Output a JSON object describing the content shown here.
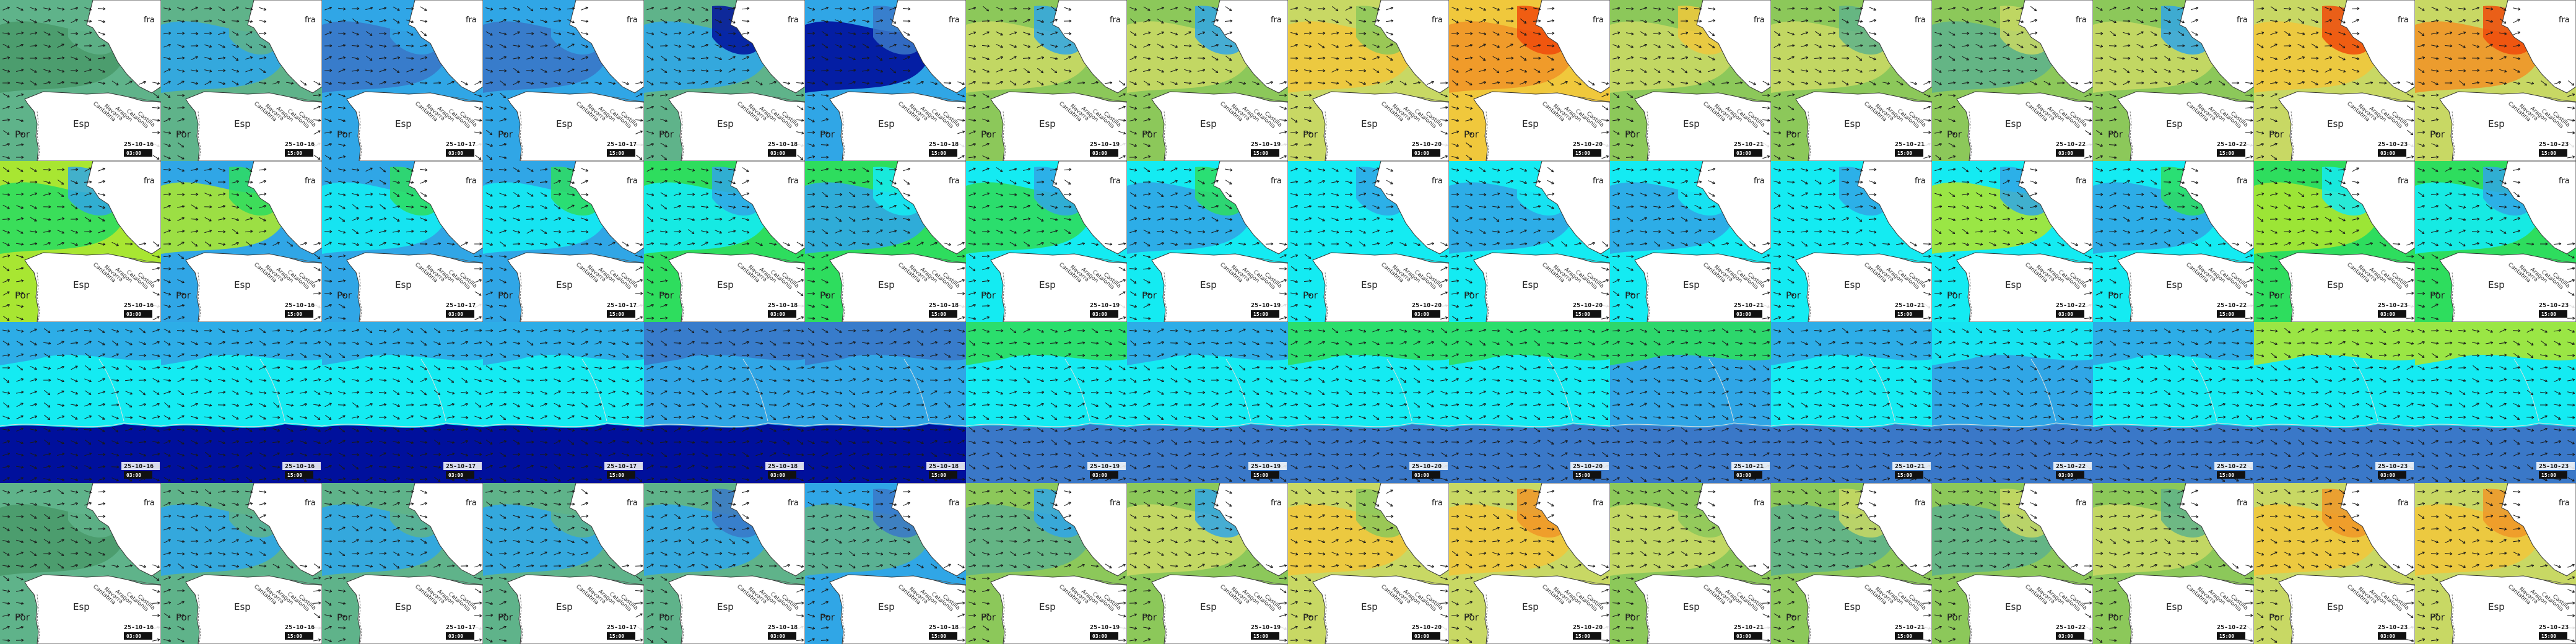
{
  "map_labels": {
    "france": "fra",
    "spain": "Esp",
    "portugal": "Por",
    "regions": [
      "Cantabria",
      "Navarra",
      "Aragon",
      "Catalonia",
      "Castilla"
    ]
  },
  "legend_colors": {
    "sea_green": "#5fb38a",
    "dark_green": "#4a9a6a",
    "light_blue": "#30a6e6",
    "mid_blue": "#3a78c8",
    "navy": "#00109c",
    "cyan": "#14ebf2",
    "green": "#2edd5e",
    "yellow_green": "#a8e632",
    "olive": "#8cc85a",
    "lime": "#c8d864",
    "yellow": "#f0c83c",
    "orange": "#f09628",
    "red": "#f04a0a"
  },
  "frames": [
    {
      "date": "25-10-16",
      "time": "03:00"
    },
    {
      "date": "25-10-16",
      "time": "15:00"
    },
    {
      "date": "25-10-17",
      "time": "03:00"
    },
    {
      "date": "25-10-17",
      "time": "15:00"
    },
    {
      "date": "25-10-18",
      "time": "03:00"
    },
    {
      "date": "25-10-18",
      "time": "15:00"
    },
    {
      "date": "25-10-19",
      "time": "03:00"
    },
    {
      "date": "25-10-19",
      "time": "15:00"
    },
    {
      "date": "25-10-20",
      "time": "03:00"
    },
    {
      "date": "25-10-20",
      "time": "15:00"
    },
    {
      "date": "25-10-21",
      "time": "03:00"
    },
    {
      "date": "25-10-21",
      "time": "15:00"
    },
    {
      "date": "25-10-22",
      "time": "03:00"
    },
    {
      "date": "25-10-22",
      "time": "15:00"
    },
    {
      "date": "25-10-23",
      "time": "03:00"
    },
    {
      "date": "25-10-23",
      "time": "15:00"
    }
  ],
  "rows": [
    {
      "name": "row-wind",
      "style": "map",
      "tiles": [
        {
          "base": "#5fb38a",
          "a": "#4a9a6a",
          "b": "#5fb38a"
        },
        {
          "base": "#5fb38a",
          "a": "#30a6e6",
          "b": "#5fb38a"
        },
        {
          "base": "#30a6e6",
          "a": "#3a78c8",
          "b": "#30a6e6"
        },
        {
          "base": "#30a6e6",
          "a": "#3a78c8",
          "b": "#30a6e6"
        },
        {
          "base": "#5fb38a",
          "a": "#30a6e6",
          "b": "#00109c"
        },
        {
          "base": "#30a6e6",
          "a": "#00109c",
          "b": "#3a78c8"
        },
        {
          "base": "#8cc85a",
          "a": "#c8d864",
          "b": "#30a6e6"
        },
        {
          "base": "#8cc85a",
          "a": "#c8d864",
          "b": "#30a6e6"
        },
        {
          "base": "#c8d864",
          "a": "#f0c83c",
          "b": "#8cc85a"
        },
        {
          "base": "#f0c83c",
          "a": "#f09628",
          "b": "#f04a0a"
        },
        {
          "base": "#8cc85a",
          "a": "#c8d864",
          "b": "#f0c83c"
        },
        {
          "base": "#8cc85a",
          "a": "#c8d864",
          "b": "#5fb38a"
        },
        {
          "base": "#8cc85a",
          "a": "#5fb38a",
          "b": "#c8d864"
        },
        {
          "base": "#8cc85a",
          "a": "#c8d864",
          "b": "#30a6e6"
        },
        {
          "base": "#c8d864",
          "a": "#f0c83c",
          "b": "#f04a0a"
        },
        {
          "base": "#c8d864",
          "a": "#f09628",
          "b": "#f04a0a"
        }
      ]
    },
    {
      "name": "row-wave",
      "style": "map",
      "tiles": [
        {
          "base": "#a8e632",
          "a": "#2edd5e",
          "b": "#30a6e6"
        },
        {
          "base": "#30a6e6",
          "a": "#a8e632",
          "b": "#2edd5e"
        },
        {
          "base": "#30a6e6",
          "a": "#14ebf2",
          "b": "#2edd5e"
        },
        {
          "base": "#30a6e6",
          "a": "#14ebf2",
          "b": "#2edd5e"
        },
        {
          "base": "#2edd5e",
          "a": "#14ebf2",
          "b": "#30a6e6"
        },
        {
          "base": "#2edd5e",
          "a": "#30a6e6",
          "b": "#14ebf2"
        },
        {
          "base": "#14ebf2",
          "a": "#2edd5e",
          "b": "#30a6e6"
        },
        {
          "base": "#14ebf2",
          "a": "#30a6e6",
          "b": "#2edd5e"
        },
        {
          "base": "#14ebf2",
          "a": "#14ebf2",
          "b": "#30a6e6"
        },
        {
          "base": "#14ebf2",
          "a": "#30a6e6",
          "b": "#14ebf2"
        },
        {
          "base": "#14ebf2",
          "a": "#30a6e6",
          "b": "#14ebf2"
        },
        {
          "base": "#14ebf2",
          "a": "#14ebf2",
          "b": "#30a6e6"
        },
        {
          "base": "#14ebf2",
          "a": "#a8e632",
          "b": "#30a6e6"
        },
        {
          "base": "#14ebf2",
          "a": "#30a6e6",
          "b": "#2edd5e"
        },
        {
          "base": "#2edd5e",
          "a": "#a8e632",
          "b": "#14ebf2"
        },
        {
          "base": "#2edd5e",
          "a": "#14ebf2",
          "b": "#30a6e6"
        }
      ]
    },
    {
      "name": "row-period",
      "style": "wide",
      "tiles": [
        {
          "base": "#14ebf2",
          "a": "#30a6e6",
          "b": "#00109c"
        },
        {
          "base": "#14ebf2",
          "a": "#30a6e6",
          "b": "#00109c"
        },
        {
          "base": "#14ebf2",
          "a": "#30a6e6",
          "b": "#00109c"
        },
        {
          "base": "#14ebf2",
          "a": "#30a6e6",
          "b": "#00109c"
        },
        {
          "base": "#30a6e6",
          "a": "#3a78c8",
          "b": "#00109c"
        },
        {
          "base": "#30a6e6",
          "a": "#3a78c8",
          "b": "#00109c"
        },
        {
          "base": "#14ebf2",
          "a": "#2edd5e",
          "b": "#3a78c8"
        },
        {
          "base": "#14ebf2",
          "a": "#30a6e6",
          "b": "#3a78c8"
        },
        {
          "base": "#14ebf2",
          "a": "#2edd5e",
          "b": "#3a78c8"
        },
        {
          "base": "#14ebf2",
          "a": "#2edd5e",
          "b": "#3a78c8"
        },
        {
          "base": "#30a6e6",
          "a": "#2edd5e",
          "b": "#3a78c8"
        },
        {
          "base": "#14ebf2",
          "a": "#30a6e6",
          "b": "#3a78c8"
        },
        {
          "base": "#30a6e6",
          "a": "#14ebf2",
          "b": "#3a78c8"
        },
        {
          "base": "#14ebf2",
          "a": "#30a6e6",
          "b": "#3a78c8"
        },
        {
          "base": "#14ebf2",
          "a": "#a8e632",
          "b": "#3a78c8"
        },
        {
          "base": "#14ebf2",
          "a": "#a8e632",
          "b": "#3a78c8"
        }
      ]
    },
    {
      "name": "row-gust",
      "style": "map",
      "tiles": [
        {
          "base": "#5fb38a",
          "a": "#4a9a6a",
          "b": "#5fb38a"
        },
        {
          "base": "#5fb38a",
          "a": "#30a6e6",
          "b": "#5fb38a"
        },
        {
          "base": "#5fb38a",
          "a": "#30a6e6",
          "b": "#5fb38a"
        },
        {
          "base": "#5fb38a",
          "a": "#30a6e6",
          "b": "#5fb38a"
        },
        {
          "base": "#5fb38a",
          "a": "#30a6e6",
          "b": "#3a78c8"
        },
        {
          "base": "#30a6e6",
          "a": "#5fb38a",
          "b": "#3a78c8"
        },
        {
          "base": "#8cc85a",
          "a": "#5fb38a",
          "b": "#30a6e6"
        },
        {
          "base": "#8cc85a",
          "a": "#c8d864",
          "b": "#30a6e6"
        },
        {
          "base": "#c8d864",
          "a": "#f0c83c",
          "b": "#8cc85a"
        },
        {
          "base": "#c8d864",
          "a": "#f0c83c",
          "b": "#f09628"
        },
        {
          "base": "#8cc85a",
          "a": "#c8d864",
          "b": "#8cc85a"
        },
        {
          "base": "#8cc85a",
          "a": "#5fb38a",
          "b": "#c8d864"
        },
        {
          "base": "#8cc85a",
          "a": "#5fb38a",
          "b": "#c8d864"
        },
        {
          "base": "#8cc85a",
          "a": "#c8d864",
          "b": "#5fb38a"
        },
        {
          "base": "#c8d864",
          "a": "#f0c83c",
          "b": "#f09628"
        },
        {
          "base": "#c8d864",
          "a": "#f0c83c",
          "b": "#f09628"
        }
      ]
    }
  ]
}
